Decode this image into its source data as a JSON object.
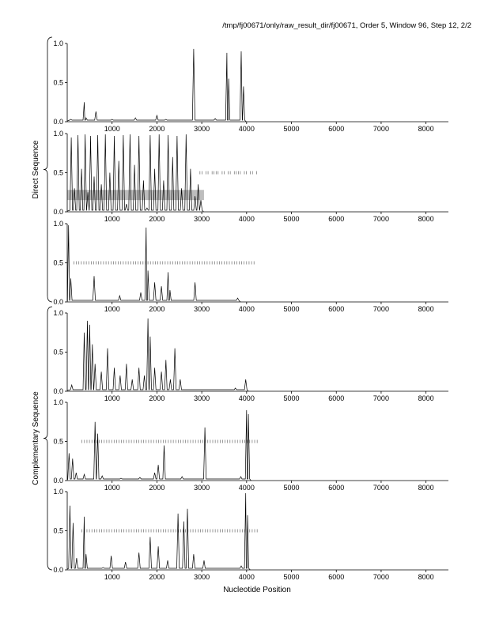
{
  "header": {
    "title": "/tmp/fj00671/only/raw_result_dir/fj00671, Order 5, Window 96, Step 12, 2/2"
  },
  "groups": [
    {
      "label": "Direct Sequence",
      "panels": [
        0,
        1,
        2
      ]
    },
    {
      "label": "Complementary Sequence",
      "panels": [
        3,
        4,
        5
      ]
    }
  ],
  "chart_data": {
    "type": "line",
    "xlabel": "Nucleotide Position",
    "xlim": [
      0,
      8500
    ],
    "ylim": [
      0,
      1
    ],
    "x_ticks": [
      1000,
      2000,
      3000,
      4000,
      5000,
      6000,
      7000,
      8000
    ],
    "y_ticks": [
      0.0,
      0.5,
      1.0
    ],
    "y_tick_labels": [
      "0.0",
      "0.5",
      "1.0"
    ],
    "panels": [
      {
        "name": "direct-frame-1",
        "peaks": [
          [
            80,
            0.03
          ],
          [
            380,
            0.25
          ],
          [
            420,
            0.05
          ],
          [
            640,
            0.13
          ],
          [
            1000,
            0.03
          ],
          [
            1520,
            0.05
          ],
          [
            2000,
            0.08
          ],
          [
            2200,
            0.03
          ],
          [
            2820,
            0.93
          ],
          [
            3300,
            0.04
          ],
          [
            3560,
            0.88
          ],
          [
            3600,
            0.55
          ],
          [
            3880,
            0.9
          ],
          [
            3930,
            0.45
          ]
        ],
        "orf_range": [
          280,
          4250
        ],
        "shaded": null
      },
      {
        "name": "direct-frame-2",
        "peaks": [
          [
            90,
            0.95
          ],
          [
            160,
            0.3
          ],
          [
            240,
            0.98
          ],
          [
            320,
            0.55
          ],
          [
            400,
            0.99
          ],
          [
            460,
            0.25
          ],
          [
            520,
            0.97
          ],
          [
            600,
            0.45
          ],
          [
            680,
            0.98
          ],
          [
            760,
            0.35
          ],
          [
            850,
            0.99
          ],
          [
            950,
            0.5
          ],
          [
            1050,
            0.97
          ],
          [
            1150,
            0.65
          ],
          [
            1250,
            0.98
          ],
          [
            1320,
            0.1
          ],
          [
            1400,
            0.99
          ],
          [
            1500,
            0.6
          ],
          [
            1600,
            0.97
          ],
          [
            1700,
            0.4
          ],
          [
            1780,
            0.05
          ],
          [
            1850,
            0.98
          ],
          [
            1950,
            0.55
          ],
          [
            2050,
            0.99
          ],
          [
            2150,
            0.4
          ],
          [
            2250,
            0.98
          ],
          [
            2350,
            0.7
          ],
          [
            2450,
            0.97
          ],
          [
            2550,
            0.3
          ],
          [
            2650,
            0.99
          ],
          [
            2750,
            0.55
          ],
          [
            2850,
            0.2
          ],
          [
            2920,
            0.35
          ],
          [
            2980,
            0.15
          ]
        ],
        "orf_range": [
          2960,
          4250
        ],
        "shaded": {
          "x_start": 0,
          "x_end": 3050,
          "y_low": 0.15,
          "y_high": 0.28
        }
      },
      {
        "name": "direct-frame-3",
        "peaks": [
          [
            30,
            0.98
          ],
          [
            80,
            0.3
          ],
          [
            600,
            0.33
          ],
          [
            1170,
            0.08
          ],
          [
            1640,
            0.12
          ],
          [
            1760,
            0.95
          ],
          [
            1800,
            0.4
          ],
          [
            1950,
            0.25
          ],
          [
            2100,
            0.2
          ],
          [
            2250,
            0.38
          ],
          [
            2290,
            0.15
          ],
          [
            2850,
            0.25
          ],
          [
            3800,
            0.05
          ]
        ],
        "orf_range": [
          150,
          4200
        ],
        "shaded": null
      },
      {
        "name": "complementary-frame-1",
        "peaks": [
          [
            100,
            0.08
          ],
          [
            380,
            0.75
          ],
          [
            450,
            0.9
          ],
          [
            500,
            0.85
          ],
          [
            560,
            0.6
          ],
          [
            620,
            0.35
          ],
          [
            760,
            0.25
          ],
          [
            900,
            0.55
          ],
          [
            1050,
            0.3
          ],
          [
            1180,
            0.2
          ],
          [
            1320,
            0.35
          ],
          [
            1450,
            0.15
          ],
          [
            1600,
            0.3
          ],
          [
            1720,
            0.2
          ],
          [
            1800,
            0.93
          ],
          [
            1850,
            0.7
          ],
          [
            1950,
            0.3
          ],
          [
            2100,
            0.25
          ],
          [
            2200,
            0.4
          ],
          [
            2300,
            0.15
          ],
          [
            2400,
            0.55
          ],
          [
            2520,
            0.15
          ],
          [
            3750,
            0.04
          ],
          [
            3980,
            0.15
          ]
        ],
        "orf_range": [
          180,
          4250
        ],
        "shaded": null
      },
      {
        "name": "complementary-frame-2",
        "peaks": [
          [
            40,
            0.35
          ],
          [
            120,
            0.28
          ],
          [
            200,
            0.1
          ],
          [
            380,
            0.08
          ],
          [
            620,
            0.75
          ],
          [
            680,
            0.6
          ],
          [
            780,
            0.06
          ],
          [
            1200,
            0.03
          ],
          [
            1620,
            0.04
          ],
          [
            1950,
            0.1
          ],
          [
            2030,
            0.2
          ],
          [
            2160,
            0.45
          ],
          [
            2560,
            0.05
          ],
          [
            3070,
            0.68
          ],
          [
            3870,
            0.05
          ],
          [
            4000,
            0.9
          ],
          [
            4040,
            0.85
          ]
        ],
        "orf_range": [
          330,
          4280
        ],
        "shaded": null
      },
      {
        "name": "complementary-frame-3",
        "peaks": [
          [
            60,
            0.82
          ],
          [
            130,
            0.6
          ],
          [
            210,
            0.15
          ],
          [
            380,
            0.68
          ],
          [
            420,
            0.2
          ],
          [
            800,
            0.03
          ],
          [
            980,
            0.18
          ],
          [
            1300,
            0.1
          ],
          [
            1600,
            0.22
          ],
          [
            1850,
            0.42
          ],
          [
            2030,
            0.3
          ],
          [
            2240,
            0.12
          ],
          [
            2470,
            0.72
          ],
          [
            2600,
            0.62
          ],
          [
            2680,
            0.78
          ],
          [
            2820,
            0.2
          ],
          [
            3050,
            0.12
          ],
          [
            3880,
            0.05
          ],
          [
            3980,
            0.98
          ],
          [
            4020,
            0.7
          ]
        ],
        "orf_range": [
          330,
          4250
        ],
        "shaded": null
      }
    ]
  }
}
